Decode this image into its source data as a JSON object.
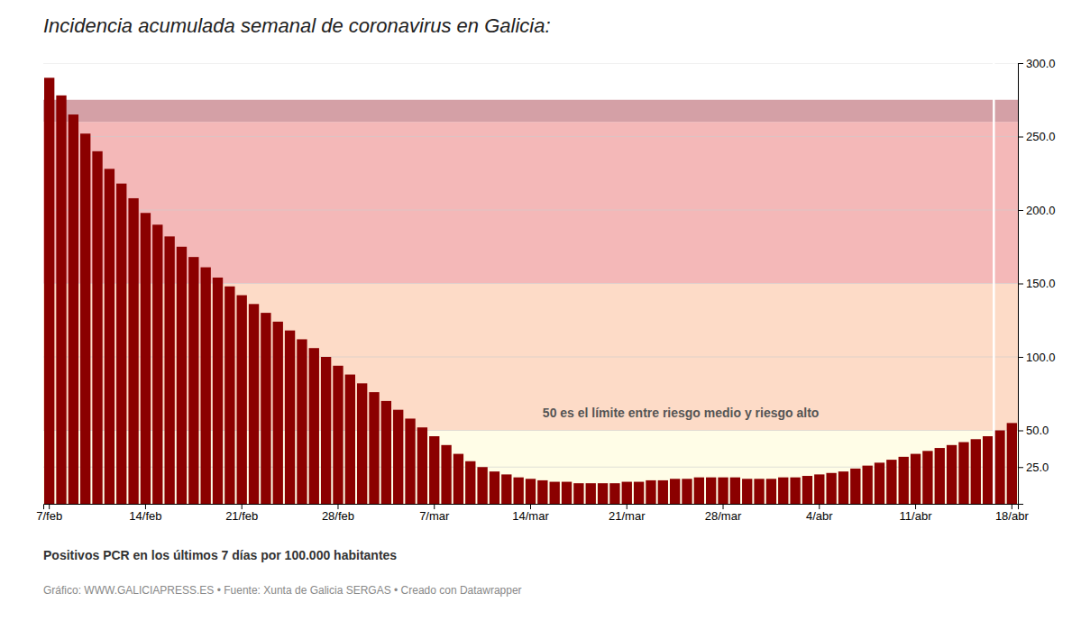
{
  "chart_data": {
    "type": "bar",
    "title": "Incidencia acumulada semanal de coronavirus en Galicia:",
    "y_label": "Positivos PCR en los últimos 7 días por 100.000 habitantes",
    "footer": "Gráfico: WWW.GALICIAPRESS.ES • Fuente: Xunta de Galicia SERGAS • Creado con Datawrapper",
    "annotation": {
      "text": "50 es el límite entre riesgo medio y riesgo alto",
      "x": 41,
      "y": 57
    },
    "categories": [
      "7/feb",
      null,
      null,
      null,
      null,
      null,
      null,
      null,
      "14/feb",
      null,
      null,
      null,
      null,
      null,
      null,
      null,
      "21/feb",
      null,
      null,
      null,
      null,
      null,
      null,
      null,
      "28/feb",
      null,
      null,
      null,
      null,
      null,
      null,
      null,
      "7/mar",
      null,
      null,
      null,
      null,
      null,
      null,
      null,
      "14/mar",
      null,
      null,
      null,
      null,
      null,
      null,
      null,
      "21/mar",
      null,
      null,
      null,
      null,
      null,
      null,
      null,
      "28/mar",
      null,
      null,
      null,
      null,
      null,
      null,
      null,
      "4/abr",
      null,
      null,
      null,
      null,
      null,
      null,
      null,
      "11/abr",
      null,
      null,
      null,
      null,
      null,
      null,
      null,
      "18/abr"
    ],
    "values": [
      290,
      278,
      265,
      252,
      240,
      228,
      218,
      208,
      198,
      190,
      182,
      175,
      168,
      161,
      154,
      148,
      142,
      136,
      130,
      124,
      118,
      112,
      106,
      100,
      94,
      88,
      82,
      76,
      70,
      64,
      58,
      52,
      46,
      40,
      34,
      29,
      25,
      22,
      20,
      18,
      17,
      16,
      15,
      15,
      14,
      14,
      14,
      14,
      15,
      15,
      16,
      16,
      17,
      17,
      18,
      18,
      18,
      18,
      17,
      17,
      17,
      18,
      18,
      19,
      20,
      21,
      22,
      24,
      26,
      28,
      30,
      32,
      34,
      36,
      38,
      40,
      42,
      44,
      46,
      50,
      55
    ],
    "color": "#8B0000",
    "zones": [
      {
        "y0": 0,
        "y1": 50,
        "color": "#FFFDE7"
      },
      {
        "y0": 50,
        "y1": 150,
        "color": "#FDDBC7"
      },
      {
        "y0": 150,
        "y1": 260,
        "color": "#F4B8B8"
      },
      {
        "y0": 260,
        "y1": 275,
        "color": "#D4A0A6"
      }
    ],
    "reference_line_x": 78.5,
    "ylim": [
      0,
      300
    ],
    "yticks": [
      {
        "value": 25,
        "label": "25.0"
      },
      {
        "value": 50,
        "label": "50.0"
      },
      {
        "value": 100,
        "label": "100.0"
      },
      {
        "value": 150,
        "label": "150.0"
      },
      {
        "value": 200,
        "label": "200.0"
      },
      {
        "value": 250,
        "label": "250.0"
      },
      {
        "value": 300,
        "label": "300.0"
      }
    ],
    "grid": true
  }
}
